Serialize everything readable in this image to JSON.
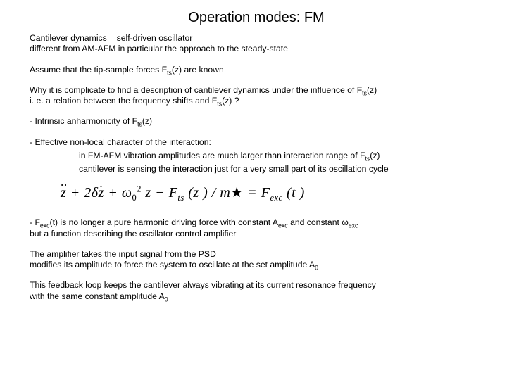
{
  "title": "Operation modes: FM",
  "para1a": "Cantilever dynamics = self-driven oscillator",
  "para1b": "different from AM-AFM in particular the approach to the steady-state",
  "para2": "Assume that the tip-sample forces F",
  "para2_sub": "ts",
  "para2_tail": "(z) are known",
  "para3a": "Why it is complicate to find a description of cantilever dynamics under the influence of F",
  "para3a_sub": "ts",
  "para3a_tail": "(z)",
  "para3b": "i. e. a relation between the frequency shifts and F",
  "para3b_sub": "ts",
  "para3b_tail": "(z) ?",
  "para4": "- Intrinsic anharmonicity of F",
  "para4_sub": "ts",
  "para4_tail": "(z)",
  "para5a": "- Effective non-local character of the interaction:",
  "para5b_pre": "in FM-AFM vibration amplitudes are much larger than interaction range of F",
  "para5b_sub": "ts",
  "para5b_tail": "(z)",
  "para5c": "cantilever is sensing the interaction just for a very small part of its oscillation cycle",
  "eq": {
    "p1": "z",
    "p2": " + 2",
    "p3": "δ",
    "p4": "z",
    "p5": " + ω",
    "p5_sub": "0",
    "p5_sup": "2",
    "p6": " z − F",
    "p6_sub": "ts",
    "p7": " (z ) / m",
    "p7_star": "★",
    "p8": " = F",
    "p8_sub": "exc",
    "p9": " (t )"
  },
  "para6a": "- F",
  "para6a_sub": "exc",
  "para6a_mid": "(t) is no longer a pure harmonic driving force with constant A",
  "para6a_sub2": "exc",
  "para6a_mid2": " and constant ω",
  "para6a_sub3": "exc",
  "para6b": "but a function describing the oscillator control amplifier",
  "para7a": "The amplifier takes the input signal from the PSD",
  "para7b": "modifies its amplitude to force the system to oscillate at the set amplitude A",
  "para7b_sub": "0",
  "para8a": "This feedback loop keeps the cantilever always vibrating at its current resonance frequency",
  "para8b": "with the same constant amplitude A",
  "para8b_sub": "0"
}
